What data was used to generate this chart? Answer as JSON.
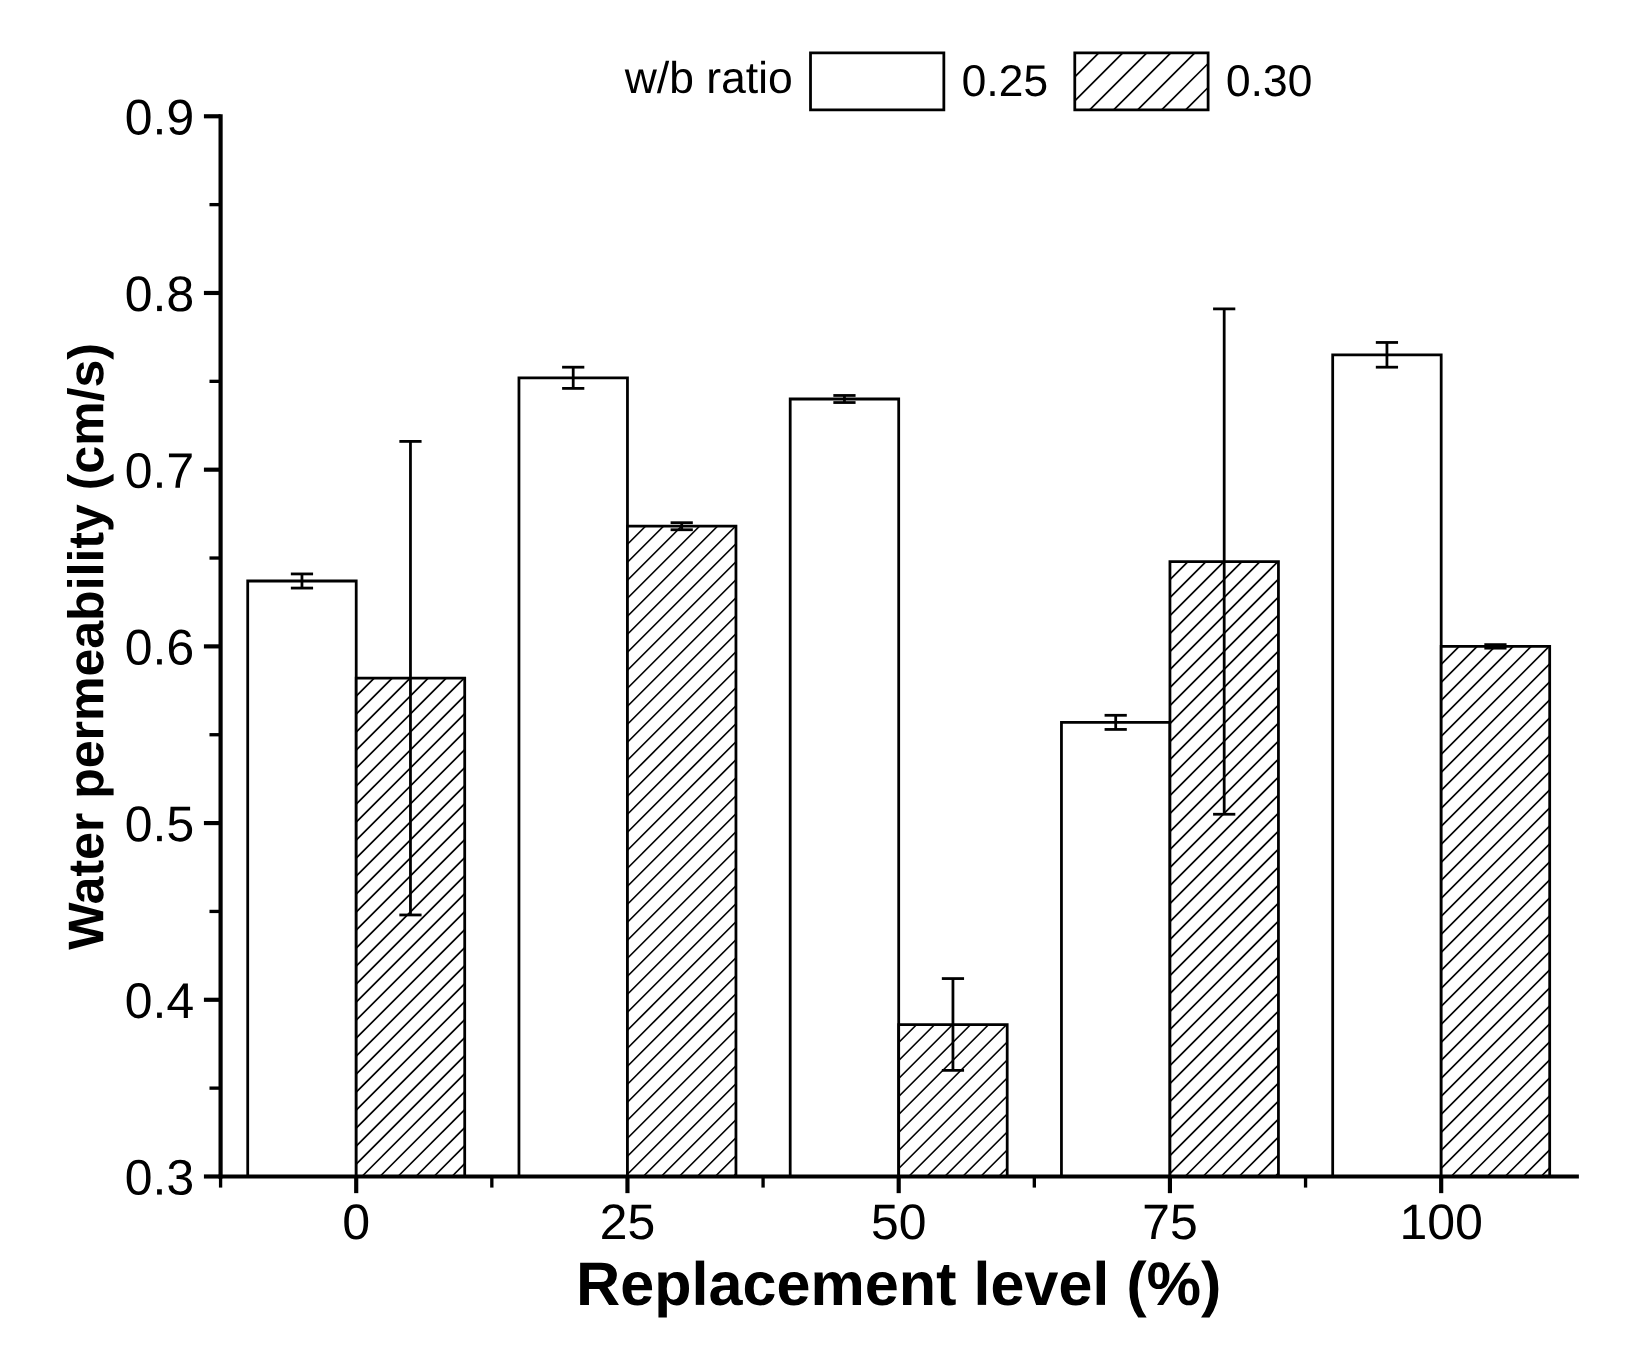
{
  "chart_data": {
    "type": "bar",
    "xlabel": "Replacement level (%)",
    "ylabel": "Water permeability (cm/s)",
    "legend_title": "w/b ratio",
    "legend": "top",
    "categories": [
      "0",
      "25",
      "50",
      "75",
      "100"
    ],
    "series": [
      {
        "name": "0.25",
        "color": "#ffffff",
        "values": [
          0.637,
          0.752,
          0.74,
          0.557,
          0.765
        ],
        "errors": [
          0.004,
          0.006,
          0.002,
          0.004,
          0.007
        ]
      },
      {
        "name": "0.30",
        "color": "#ffffff",
        "values": [
          0.582,
          0.668,
          0.386,
          0.648,
          0.6
        ],
        "errors": [
          0.134,
          0.002,
          0.026,
          0.143,
          0.001
        ]
      }
    ],
    "ylim": [
      0.3,
      0.9
    ],
    "yticks": [
      0.3,
      0.4,
      0.5,
      0.6,
      0.7,
      0.8,
      0.9
    ],
    "grid": false
  }
}
